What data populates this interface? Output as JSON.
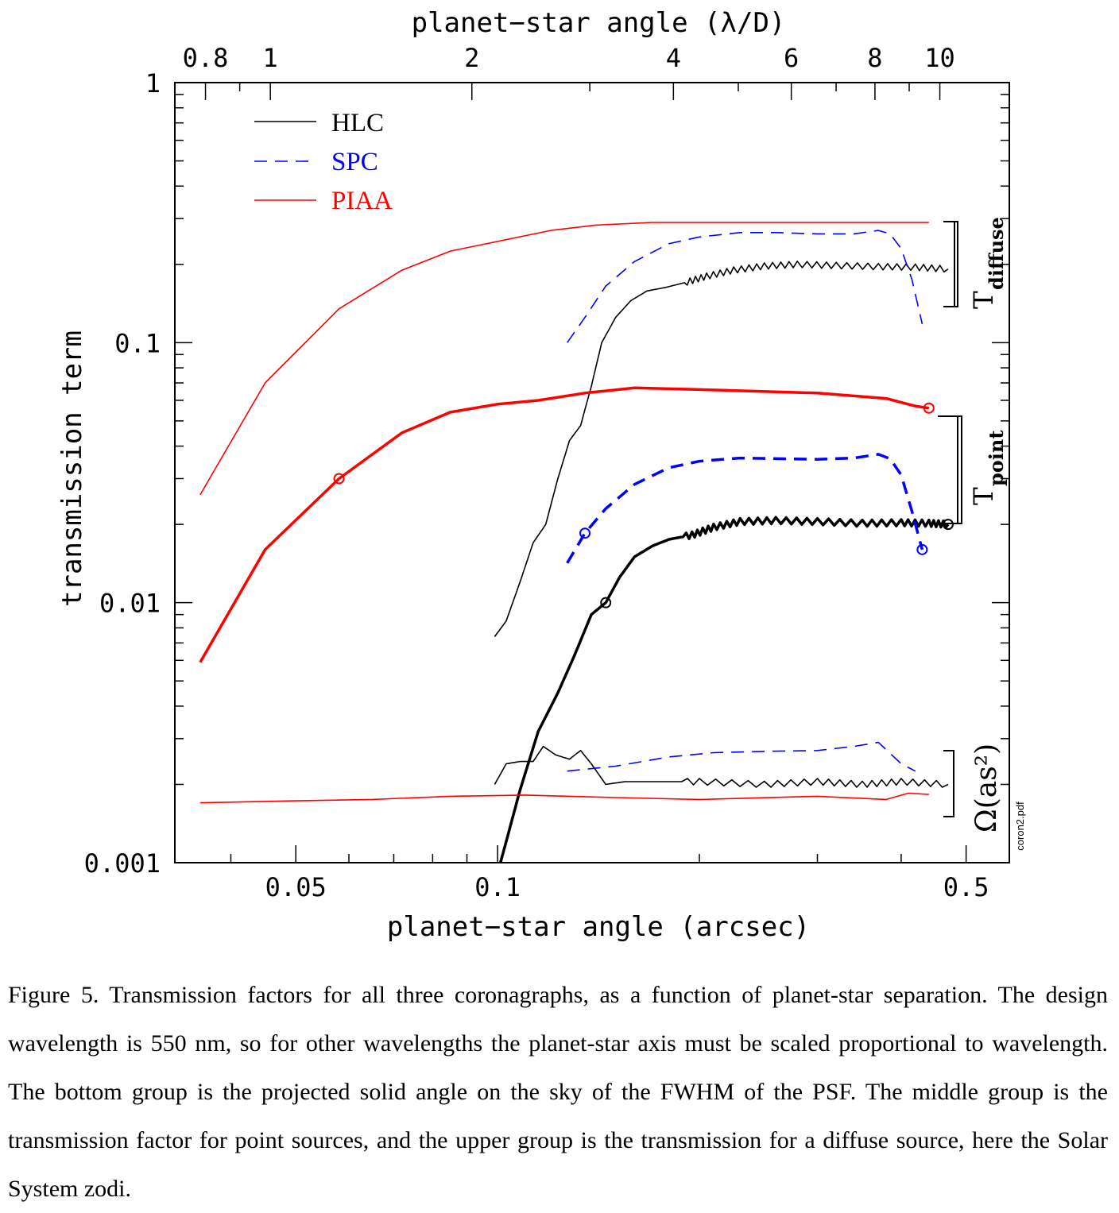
{
  "chart_data": {
    "type": "line",
    "xlabel": "planet−star angle (arcsec)",
    "x2label": "planet−star angle (λ/D)",
    "ylabel": "transmission term",
    "x_scale": "log",
    "y_scale": "log",
    "xlim": [
      0.033,
      0.58
    ],
    "x2lim": [
      0.72,
      12.7
    ],
    "ylim": [
      0.001,
      1
    ],
    "x_ticks": [
      "0.05",
      "0.1",
      "0.5"
    ],
    "x2_ticks": [
      "0.8",
      "1",
      "2",
      "4",
      "6",
      "8",
      "10"
    ],
    "y_ticks": [
      "0.001",
      "0.01",
      "0.1",
      "1"
    ],
    "legend_position": "top-left",
    "legend": [
      {
        "label": "HLC",
        "color": "#000000",
        "style": "solid"
      },
      {
        "label": "SPC",
        "color": "#0000ff",
        "style": "dashed"
      },
      {
        "label": "PIAA",
        "color": "#ff0000",
        "style": "solid"
      }
    ],
    "group_labels": {
      "diffuse": {
        "main": "T",
        "sub": "diffuse"
      },
      "point": {
        "main": "T",
        "sub": "point"
      },
      "solid_angle": "Ω(as²)"
    },
    "file_label": "coron2.pdf",
    "series": [
      {
        "name": "HLC",
        "group": "diffuse",
        "color": "#000000",
        "style": "solid",
        "weight": "thin",
        "wiggle": true,
        "x": [
          0.099,
          0.103,
          0.108,
          0.113,
          0.118,
          0.123,
          0.128,
          0.133,
          0.138,
          0.143,
          0.15,
          0.158,
          0.167,
          0.178,
          0.19,
          0.205,
          0.225,
          0.25,
          0.28,
          0.32,
          0.37,
          0.42,
          0.47
        ],
        "y": [
          0.0074,
          0.0085,
          0.012,
          0.017,
          0.02,
          0.03,
          0.042,
          0.048,
          0.068,
          0.1,
          0.125,
          0.145,
          0.158,
          0.163,
          0.17,
          0.18,
          0.19,
          0.197,
          0.2,
          0.198,
          0.196,
          0.195,
          0.192
        ]
      },
      {
        "name": "SPC",
        "group": "diffuse",
        "color": "#0000ff",
        "style": "dashed",
        "weight": "thin",
        "x": [
          0.127,
          0.135,
          0.145,
          0.16,
          0.18,
          0.2,
          0.23,
          0.26,
          0.3,
          0.34,
          0.37,
          0.385,
          0.4,
          0.415,
          0.43
        ],
        "y": [
          0.1,
          0.125,
          0.165,
          0.205,
          0.24,
          0.255,
          0.265,
          0.265,
          0.262,
          0.262,
          0.27,
          0.262,
          0.23,
          0.175,
          0.118
        ]
      },
      {
        "name": "PIAA",
        "group": "diffuse",
        "color": "#ff0000",
        "style": "solid",
        "weight": "thin",
        "x": [
          0.036,
          0.045,
          0.058,
          0.072,
          0.085,
          0.1,
          0.12,
          0.14,
          0.17,
          0.2,
          0.3,
          0.44
        ],
        "y": [
          0.026,
          0.07,
          0.135,
          0.19,
          0.225,
          0.245,
          0.27,
          0.283,
          0.29,
          0.29,
          0.29,
          0.29
        ]
      },
      {
        "name": "HLC",
        "group": "point",
        "color": "#000000",
        "style": "solid",
        "weight": "thick",
        "wiggle": true,
        "marker_x": 0.145,
        "marker_y": 0.01,
        "end_marker": true,
        "x": [
          0.101,
          0.108,
          0.115,
          0.123,
          0.13,
          0.138,
          0.145,
          0.152,
          0.16,
          0.17,
          0.18,
          0.195,
          0.21,
          0.23,
          0.26,
          0.3,
          0.35,
          0.4,
          0.44,
          0.47
        ],
        "y": [
          0.001,
          0.0019,
          0.0032,
          0.0045,
          0.0062,
          0.009,
          0.01,
          0.0125,
          0.015,
          0.0165,
          0.0175,
          0.0182,
          0.0195,
          0.0205,
          0.0207,
          0.0205,
          0.0202,
          0.0203,
          0.0202,
          0.02
        ]
      },
      {
        "name": "SPC",
        "group": "point",
        "color": "#0000ff",
        "style": "dashed",
        "weight": "thick",
        "marker_x": 0.135,
        "marker_y": 0.0185,
        "end_marker": true,
        "x": [
          0.127,
          0.135,
          0.145,
          0.16,
          0.18,
          0.2,
          0.23,
          0.26,
          0.3,
          0.34,
          0.37,
          0.385,
          0.4,
          0.415,
          0.43
        ],
        "y": [
          0.0142,
          0.0185,
          0.023,
          0.0285,
          0.033,
          0.035,
          0.036,
          0.0358,
          0.0356,
          0.036,
          0.0372,
          0.0358,
          0.031,
          0.0225,
          0.016
        ]
      },
      {
        "name": "PIAA",
        "group": "point",
        "color": "#ff0000",
        "style": "solid",
        "weight": "thick",
        "marker_x": 0.058,
        "marker_y": 0.03,
        "end_marker": true,
        "x": [
          0.036,
          0.045,
          0.058,
          0.072,
          0.085,
          0.1,
          0.115,
          0.135,
          0.16,
          0.2,
          0.3,
          0.38,
          0.42,
          0.44
        ],
        "y": [
          0.0059,
          0.016,
          0.03,
          0.045,
          0.054,
          0.058,
          0.06,
          0.064,
          0.067,
          0.066,
          0.064,
          0.061,
          0.057,
          0.056
        ]
      },
      {
        "name": "HLC",
        "group": "solid_angle",
        "color": "#000000",
        "style": "solid",
        "weight": "thin",
        "wiggle": true,
        "x": [
          0.099,
          0.103,
          0.108,
          0.113,
          0.117,
          0.122,
          0.128,
          0.133,
          0.138,
          0.145,
          0.155,
          0.17,
          0.2,
          0.25,
          0.3,
          0.35,
          0.4,
          0.47
        ],
        "y": [
          0.002,
          0.0024,
          0.00245,
          0.00245,
          0.0028,
          0.0026,
          0.0025,
          0.0027,
          0.0024,
          0.002,
          0.00205,
          0.00205,
          0.00205,
          0.002,
          0.00205,
          0.002,
          0.00205,
          0.002
        ]
      },
      {
        "name": "SPC",
        "group": "solid_angle",
        "color": "#0000ff",
        "style": "dashed",
        "weight": "thin",
        "x": [
          0.127,
          0.15,
          0.18,
          0.21,
          0.25,
          0.3,
          0.34,
          0.37,
          0.4,
          0.42
        ],
        "y": [
          0.00225,
          0.00235,
          0.00255,
          0.00265,
          0.00268,
          0.0027,
          0.0028,
          0.0029,
          0.0024,
          0.00225
        ]
      },
      {
        "name": "PIAA",
        "group": "solid_angle",
        "color": "#ff0000",
        "style": "solid",
        "weight": "thin",
        "x": [
          0.036,
          0.05,
          0.065,
          0.085,
          0.11,
          0.15,
          0.2,
          0.3,
          0.38,
          0.41,
          0.44
        ],
        "y": [
          0.0017,
          0.00173,
          0.00175,
          0.0018,
          0.00182,
          0.00178,
          0.00175,
          0.0018,
          0.00175,
          0.00185,
          0.00183
        ]
      }
    ]
  },
  "caption": "Figure 5.  Transmission factors for all three coronagraphs, as a function of planet-star separation. The design wavelength is 550 nm, so for other wavelengths the planet-star axis must be scaled proportional to wavelength.  The bottom group is the projected solid angle on the sky of the FWHM of the PSF.  The middle group is the transmission factor for point sources, and the upper group is the transmission for a diffuse source, here the Solar System zodi."
}
